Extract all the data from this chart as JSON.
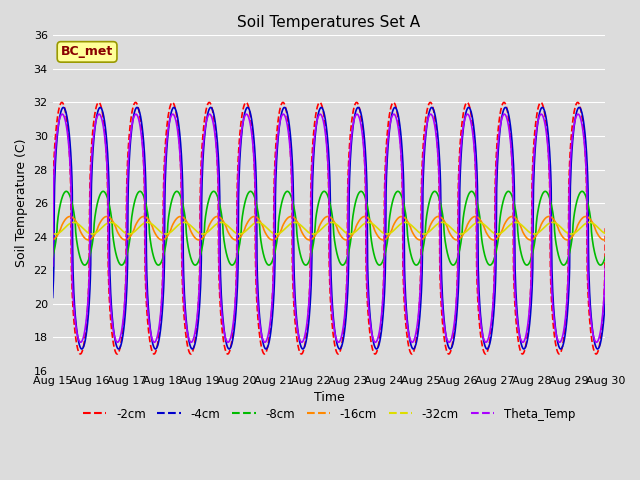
{
  "title": "Soil Temperatures Set A",
  "xlabel": "Time",
  "ylabel": "Soil Temperature (C)",
  "ylim": [
    16,
    36
  ],
  "xlim_days": [
    0,
    15
  ],
  "x_tick_labels": [
    "Aug 15",
    "Aug 16",
    "Aug 17",
    "Aug 18",
    "Aug 19",
    "Aug 20",
    "Aug 21",
    "Aug 22",
    "Aug 23",
    "Aug 24",
    "Aug 25",
    "Aug 26",
    "Aug 27",
    "Aug 28",
    "Aug 29",
    "Aug 30"
  ],
  "series": {
    "-2cm": {
      "color": "#ff0000",
      "linestyle": "--",
      "mean": 24.5,
      "amp": 7.5,
      "phase": 0.0,
      "sharpness": 2.5
    },
    "-4cm": {
      "color": "#0000cc",
      "linestyle": "-",
      "mean": 24.5,
      "amp": 7.2,
      "phase": 0.04,
      "sharpness": 2.5
    },
    "-8cm": {
      "color": "#00bb00",
      "linestyle": "-",
      "mean": 24.5,
      "amp": 2.2,
      "phase": 0.12,
      "sharpness": 1.5
    },
    "-16cm": {
      "color": "#ff8800",
      "linestyle": "-",
      "mean": 24.5,
      "amp": 0.7,
      "phase": 0.22,
      "sharpness": 1.2
    },
    "-32cm": {
      "color": "#dddd00",
      "linestyle": "-",
      "mean": 24.5,
      "amp": 0.35,
      "phase": 0.32,
      "sharpness": 1.0
    },
    "Theta_Temp": {
      "color": "#aa00ff",
      "linestyle": "-",
      "mean": 24.5,
      "amp": 6.8,
      "phase": 0.01,
      "sharpness": 2.5
    }
  },
  "fig_bg": "#dcdcdc",
  "plot_bg": "#dcdcdc",
  "grid_color": "#ffffff",
  "annotation_text": "BC_met",
  "annotation_bg": "#ffff99",
  "annotation_fg": "#880000",
  "yticks": [
    16,
    18,
    20,
    22,
    24,
    26,
    28,
    30,
    32,
    34,
    36
  ],
  "title_fontsize": 11,
  "label_fontsize": 9,
  "tick_fontsize": 8
}
